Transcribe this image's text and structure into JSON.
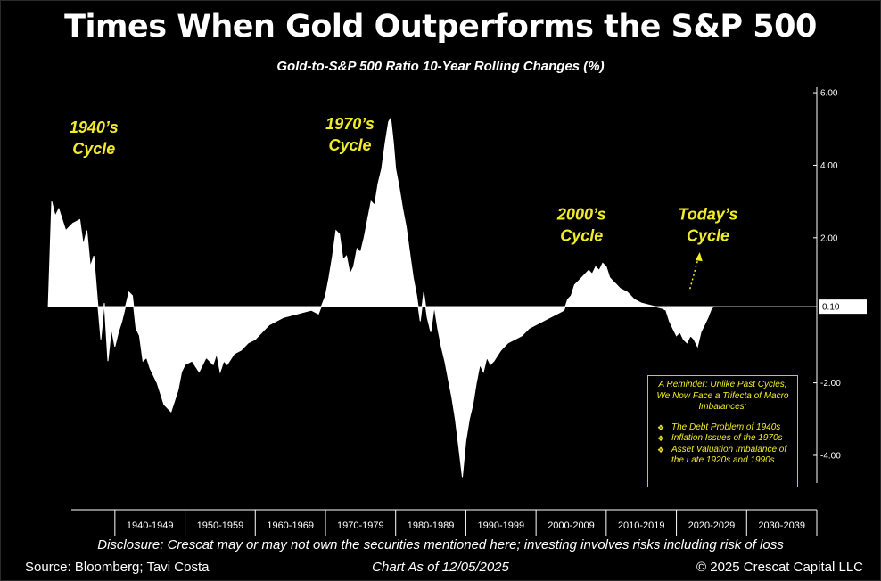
{
  "header": {
    "title": "Times When Gold Outperforms the S&P 500",
    "subtitle": "Gold-to-S&P 500 Ratio 10-Year Rolling Changes (%)"
  },
  "chart_data": {
    "type": "area",
    "yaxis_side": "right",
    "ylim": [
      -5.5,
      6.1
    ],
    "y_ticks": [
      "6.00",
      "4.00",
      "2.00",
      "-2.00",
      "-4.00"
    ],
    "current_value_label": "0.10",
    "current_value": 0.1,
    "xlim": [
      1931,
      2040
    ],
    "x_ticks": [
      "1940-1949",
      "1950-1959",
      "1960-1969",
      "1970-1979",
      "1980-1989",
      "1990-1999",
      "2000-2009",
      "2010-2019",
      "2020-2029",
      "2030-2039"
    ],
    "x_tick_years": [
      1940,
      1950,
      1960,
      1970,
      1980,
      1990,
      2000,
      2010,
      2020,
      2030,
      2040
    ],
    "series": [
      {
        "x": [
          1930.5,
          1931,
          1931.5,
          1932,
          1933,
          1934,
          1935,
          1935.5,
          1936,
          1936.5,
          1937,
          1937.5,
          1938,
          1938.5,
          1939,
          1939.5,
          1940,
          1940.5,
          1941,
          1942,
          1942.5,
          1943,
          1943.5,
          1944,
          1944.5,
          1945,
          1946,
          1947,
          1948,
          1949,
          1949.5,
          1950,
          1951,
          1952,
          1953,
          1954,
          1954.5,
          1955,
          1955.5,
          1956,
          1957,
          1958,
          1959,
          1960,
          1961,
          1962,
          1963,
          1964,
          1965,
          1966,
          1967,
          1968,
          1969,
          1970,
          1970.5,
          1971,
          1971.5,
          1972,
          1972.5,
          1973,
          1973.5,
          1974,
          1974.5,
          1975,
          1975.5,
          1976,
          1976.5,
          1977,
          1977.5,
          1978,
          1978.5,
          1979,
          1979.3,
          1979.7,
          1980,
          1980.5,
          1981,
          1981.5,
          1982,
          1982.5,
          1983,
          1983.5,
          1984,
          1984.5,
          1985,
          1985.5,
          1986,
          1986.5,
          1987,
          1987.5,
          1988,
          1988.5,
          1989,
          1989.5,
          1990,
          1990.5,
          1991,
          1991.5,
          1992,
          1992.5,
          1993,
          1993.5,
          1994,
          1995,
          1996,
          1997,
          1998,
          1999,
          2000,
          2001,
          2002,
          2003,
          2004,
          2004.5,
          2005,
          2005.5,
          2006,
          2006.5,
          2007,
          2007.5,
          2008,
          2008.5,
          2009,
          2009.5,
          2010,
          2010.5,
          2011,
          2011.5,
          2012,
          2012.5,
          2013,
          2013.5,
          2014,
          2015,
          2016,
          2017,
          2018,
          2018.5,
          2019,
          2019.5,
          2020,
          2020.5,
          2021,
          2021.5,
          2022,
          2022.5,
          2023,
          2023.5,
          2024,
          2024.5,
          2025,
          2025.3
        ],
        "values": [
          0.1,
          3.0,
          2.6,
          2.8,
          2.2,
          2.4,
          2.5,
          1.8,
          2.2,
          1.2,
          1.5,
          0.3,
          -0.8,
          0.2,
          -1.4,
          -0.5,
          -1.0,
          -0.6,
          -0.3,
          0.5,
          0.4,
          -0.5,
          -0.7,
          -1.4,
          -1.3,
          -1.6,
          -2.0,
          -2.6,
          -2.8,
          -2.2,
          -1.7,
          -1.5,
          -1.4,
          -1.7,
          -1.3,
          -1.5,
          -1.2,
          -1.7,
          -1.4,
          -1.5,
          -1.2,
          -1.1,
          -0.9,
          -0.8,
          -0.6,
          -0.4,
          -0.3,
          -0.2,
          -0.15,
          -0.1,
          -0.05,
          0.0,
          -0.1,
          0.4,
          0.9,
          1.5,
          2.2,
          2.1,
          1.4,
          1.5,
          1.0,
          1.2,
          1.7,
          1.6,
          2.0,
          2.5,
          3.0,
          2.9,
          3.5,
          3.9,
          4.6,
          5.2,
          5.3,
          4.6,
          3.9,
          3.4,
          2.8,
          2.3,
          1.6,
          0.9,
          0.4,
          -0.3,
          0.5,
          -0.2,
          -0.6,
          0.1,
          -0.5,
          -1.0,
          -1.4,
          -1.9,
          -2.4,
          -3.0,
          -3.8,
          -4.6,
          -3.6,
          -3.0,
          -2.6,
          -2.0,
          -1.5,
          -1.7,
          -1.3,
          -1.5,
          -1.4,
          -1.1,
          -0.9,
          -0.8,
          -0.7,
          -0.5,
          -0.4,
          -0.3,
          -0.2,
          -0.1,
          0.0,
          0.3,
          0.4,
          0.7,
          0.8,
          0.9,
          1.0,
          1.1,
          1.0,
          1.2,
          1.1,
          1.3,
          1.2,
          0.9,
          0.8,
          0.7,
          0.6,
          0.55,
          0.5,
          0.4,
          0.3,
          0.2,
          0.15,
          0.1,
          0.05,
          0.0,
          -0.3,
          -0.5,
          -0.7,
          -0.6,
          -0.8,
          -0.9,
          -0.7,
          -0.8,
          -1.0,
          -0.6,
          -0.4,
          -0.2,
          0.05,
          0.1
        ]
      }
    ],
    "annotations": [
      {
        "text": [
          "1940’s",
          "Cycle"
        ],
        "x": 1937,
        "y": 4.9
      },
      {
        "text": [
          "1970’s",
          "Cycle"
        ],
        "x": 1973.5,
        "y": 5.0
      },
      {
        "text": [
          "2000’s",
          "Cycle"
        ],
        "x": 2006.5,
        "y": 2.5
      },
      {
        "text": [
          "Today’s",
          "Cycle"
        ],
        "x": 2024.5,
        "y": 2.5
      }
    ]
  },
  "note_box": {
    "heading": "A Reminder: Unlike Past Cycles, We Now Face a Trifecta of Macro Imbalances:",
    "items": [
      "The Debt Problem of 1940s",
      "Inflation Issues of the 1970s",
      "Asset Valuation Imbalance of the Late 1920s and 1990s"
    ]
  },
  "footer": {
    "disclosure": "Disclosure: Crescat may or may not own the securities mentioned here; investing involves risks including risk of loss",
    "source": "Source: Bloomberg; Tavi Costa",
    "as_of": "Chart As of 12/05/2025",
    "copyright": "© 2025 Crescat Capital LLC"
  },
  "colors": {
    "background": "#000000",
    "fill": "#ffffff",
    "annotation": "#f2ec28",
    "note_border": "#d9c61b"
  }
}
